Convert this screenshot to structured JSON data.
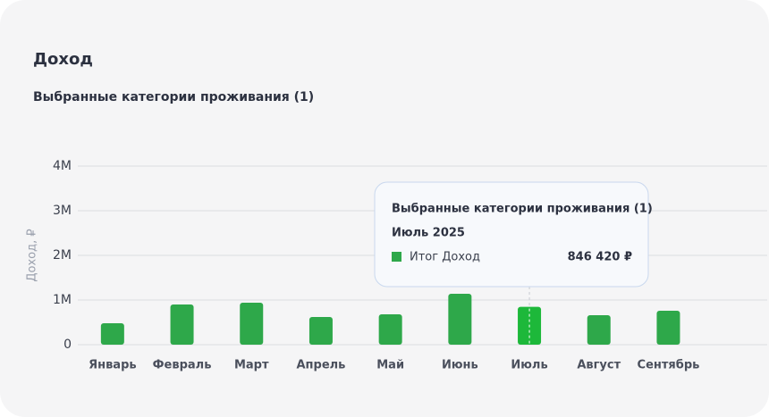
{
  "chart_data": {
    "type": "bar",
    "title": "Доход",
    "subtitle": "Выбранные категории проживания (1)",
    "y_label": "Доход, ₽",
    "categories": [
      "Январь",
      "Февраль",
      "Март",
      "Апрель",
      "Май",
      "Июнь",
      "Июль",
      "Август",
      "Сентябрь"
    ],
    "series": [
      {
        "name": "Итог Доход",
        "color": "#2ea84a",
        "values": [
          480000,
          900000,
          940000,
          620000,
          680000,
          1140000,
          846420,
          660000,
          760000
        ],
        "value_labels": [
          null,
          null,
          null,
          null,
          null,
          null,
          "846 420 ₽",
          null,
          null
        ]
      }
    ],
    "ylim": [
      0,
      4000000
    ],
    "yticks": [
      0,
      {
        "value": 1000000,
        "label": "1M"
      },
      {
        "value": 2000000,
        "label": "2M"
      },
      {
        "value": 3000000,
        "label": "3M"
      },
      {
        "value": 4000000,
        "label": "4M"
      }
    ],
    "grid": true,
    "tooltip": {
      "title": "Выбранные категории проживания (1)",
      "date": "Июль 2025"
    }
  }
}
